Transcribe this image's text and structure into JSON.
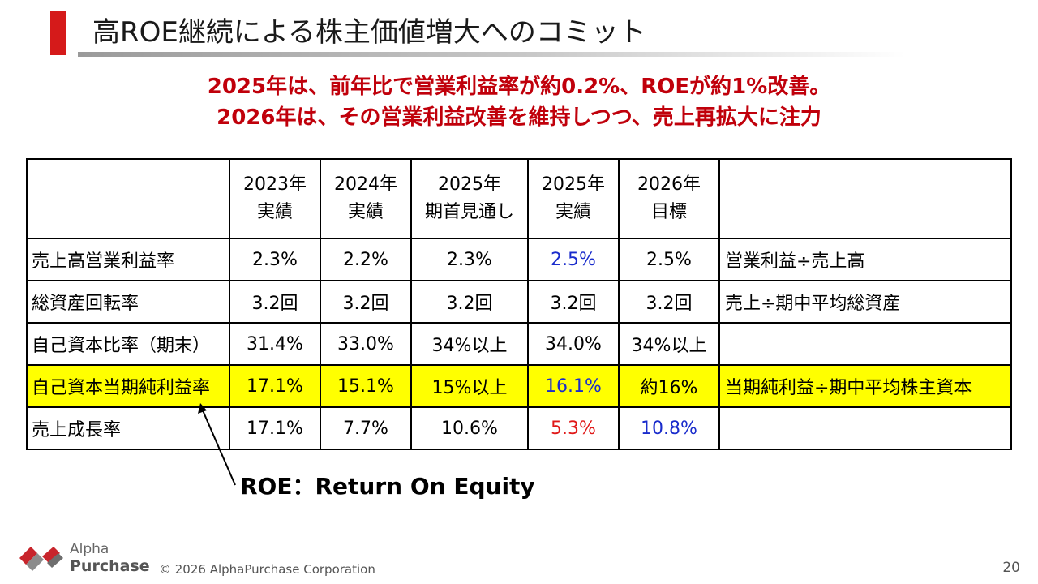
{
  "title": "高ROE継続による株主価値増大へのコミット",
  "headline": {
    "line1": "2025年は、前年比で営業利益率が約0.2%、ROEが約1%改善。",
    "line2": "2026年は、その営業利益改善を維持しつつ、売上再拡大に注力"
  },
  "table": {
    "header": [
      {
        "l1": "",
        "l2": ""
      },
      {
        "l1": "2023年",
        "l2": "実績"
      },
      {
        "l1": "2024年",
        "l2": "実績"
      },
      {
        "l1": "2025年",
        "l2": "期首見通し"
      },
      {
        "l1": "2025年",
        "l2": "実績"
      },
      {
        "l1": "2026年",
        "l2": "目標"
      },
      {
        "l1": "",
        "l2": ""
      }
    ],
    "rows": [
      {
        "label": "売上高営業利益率",
        "cells": [
          "2.3%",
          "2.2%",
          "2.3%",
          "2.5%",
          "2.5%"
        ],
        "note": "営業利益÷売上高"
      },
      {
        "label": "総資産回転率",
        "cells": [
          "3.2回",
          "3.2回",
          "3.2回",
          "3.2回",
          "3.2回"
        ],
        "note": "売上÷期中平均総資産"
      },
      {
        "label": "自己資本比率（期末）",
        "cells": [
          "31.4%",
          "33.0%",
          "34%以上",
          "34.0%",
          "34%以上"
        ],
        "note": ""
      },
      {
        "label": "自己資本当期純利益率",
        "cells": [
          "17.1%",
          "15.1%",
          "15%以上",
          "16.1%",
          "約16%"
        ],
        "note": "当期純利益÷期中平均株主資本"
      },
      {
        "label": "売上成長率",
        "cells": [
          "17.1%",
          "7.7%",
          "10.6%",
          "5.3%",
          "10.8%"
        ],
        "note": ""
      }
    ]
  },
  "roe_note": "ROE：Return On Equity",
  "footer": {
    "brand_line1": "Alpha",
    "brand_line2": "Purchase",
    "copyright": "© 2026 AlphaPurchase Corporation",
    "page_number": "20"
  },
  "colors": {
    "accent_red": "#d51a1a",
    "headline_red": "#c0000b",
    "highlight_yellow": "#ffff00",
    "blue_value": "#1a2ccc",
    "red_value": "#e01818"
  }
}
